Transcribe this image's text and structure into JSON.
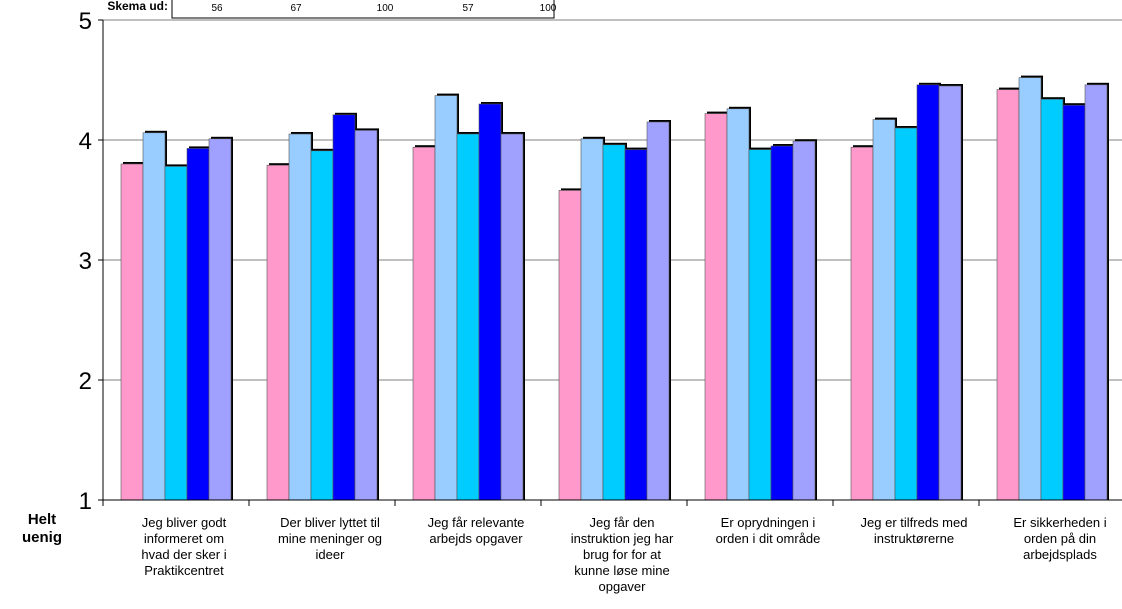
{
  "chart_data": {
    "type": "bar",
    "ylim": [
      1,
      5
    ],
    "yticks": [
      "1",
      "2",
      "3",
      "4",
      "5"
    ],
    "y_min_label": "Helt\nuenig",
    "grid": true,
    "legend_table": {
      "label": "Skema ud:",
      "values": [
        "56",
        "67",
        "100",
        "57",
        "100"
      ]
    },
    "categories": [
      "Jeg bliver godt informeret om hvad der sker i Praktikcentret",
      "Der bliver lyttet til mine meninger og ideer",
      "Jeg får relevante arbejds opgaver",
      "Jeg får den instruktion jeg har brug for for at kunne løse mine opgaver",
      "Er oprydningen i orden i dit område",
      "Jeg er tilfreds med instruktørerne",
      "Er sikkerheden i orden på din arbejdsplads"
    ],
    "category_lines": [
      [
        "Jeg bliver godt",
        "informeret om",
        "hvad der sker i",
        "Praktikcentret"
      ],
      [
        "Der bliver lyttet til",
        "mine meninger og",
        "ideer"
      ],
      [
        "Jeg får relevante",
        "arbejds opgaver"
      ],
      [
        "Jeg får den",
        "instruktion jeg har",
        "brug for for at",
        "kunne løse mine",
        "opgaver"
      ],
      [
        "Er oprydningen i",
        "orden i dit område"
      ],
      [
        "Jeg er tilfreds med",
        "instruktørerne"
      ],
      [
        "Er sikkerheden i",
        "orden på din",
        "arbejdsplads"
      ]
    ],
    "series": [
      {
        "color": "#ff99cc",
        "values": [
          3.8,
          3.79,
          3.94,
          3.58,
          4.22,
          3.94,
          4.42
        ]
      },
      {
        "color": "#99ccff",
        "values": [
          4.06,
          4.05,
          4.37,
          4.01,
          4.26,
          4.17,
          4.52
        ]
      },
      {
        "color": "#00ccff",
        "values": [
          3.78,
          3.91,
          4.05,
          3.96,
          3.92,
          4.1,
          4.34
        ]
      },
      {
        "color": "#0000ff",
        "values": [
          3.93,
          4.21,
          4.3,
          3.92,
          3.95,
          4.46,
          4.29
        ]
      },
      {
        "color": "#a0a0ff",
        "values": [
          4.01,
          4.08,
          4.05,
          4.15,
          3.99,
          4.45,
          4.46
        ]
      }
    ]
  }
}
